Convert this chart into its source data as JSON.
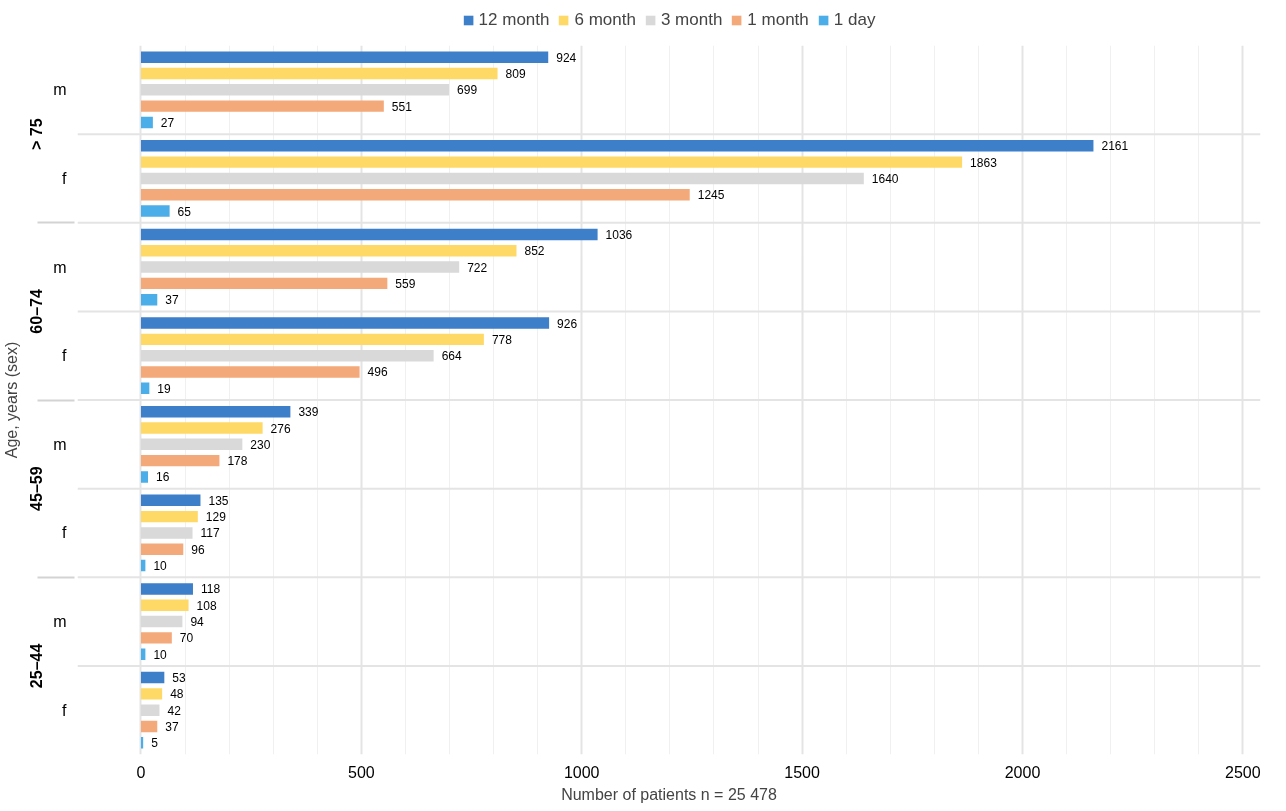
{
  "chart_data": {
    "type": "bar",
    "orientation": "horizontal",
    "xlabel": "Number of patients n = 25 478",
    "ylabel": "Age, years (sex)",
    "categories": [
      "m",
      "f",
      "m",
      "f",
      "m",
      "f",
      "m",
      "f"
    ],
    "annotations": [
      "> 75",
      "60–74",
      "45–59",
      "25–44"
    ],
    "series": [
      {
        "name": "12 month",
        "color": "#3d7fc9",
        "values": [
          924,
          2161,
          1036,
          926,
          339,
          135,
          118,
          53
        ]
      },
      {
        "name": "6 month",
        "color": "#ffd966",
        "values": [
          809,
          1863,
          852,
          778,
          276,
          129,
          108,
          48
        ]
      },
      {
        "name": "3 month",
        "color": "#d9d9d9",
        "values": [
          699,
          1640,
          722,
          664,
          230,
          117,
          94,
          42
        ]
      },
      {
        "name": "1 month",
        "color": "#f4a97a",
        "values": [
          551,
          1245,
          559,
          496,
          178,
          96,
          70,
          37
        ]
      },
      {
        "name": "1 day",
        "color": "#4baee8",
        "values": [
          27,
          65,
          37,
          19,
          16,
          10,
          10,
          5
        ]
      }
    ],
    "xlim": [
      -144,
      2540
    ],
    "xticks": [
      0,
      500,
      1000,
      1500,
      2000,
      2500
    ],
    "data_labels": true,
    "grid": true,
    "legend": "top"
  }
}
